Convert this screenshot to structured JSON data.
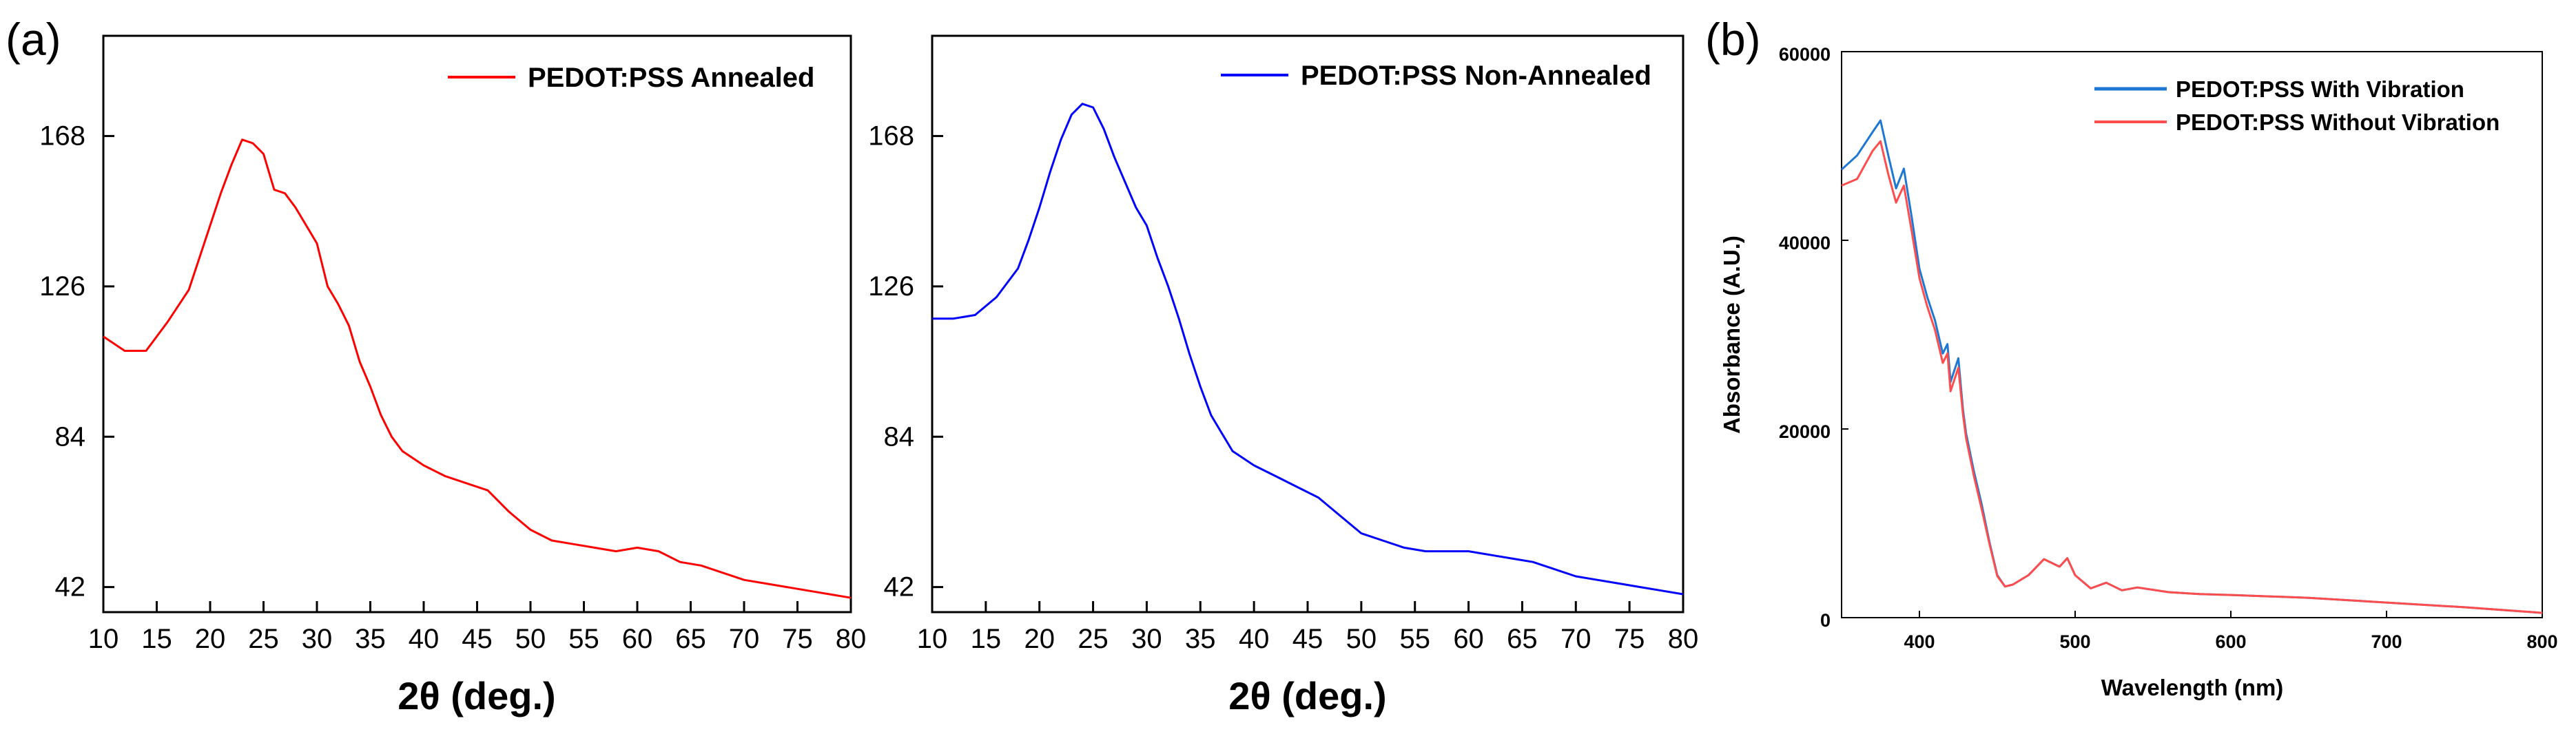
{
  "panel_labels": {
    "a": "(a)",
    "b": "(b)"
  },
  "chart_data": [
    {
      "id": "a1",
      "type": "line",
      "title": "",
      "xlabel": "2θ (deg.)",
      "ylabel": "",
      "xlim": [
        10,
        80
      ],
      "ylim": [
        35,
        196
      ],
      "xticks": [
        "10",
        "15",
        "20",
        "25",
        "30",
        "35",
        "40",
        "45",
        "50",
        "55",
        "60",
        "65",
        "70",
        "75",
        "80"
      ],
      "yticks": [
        "42",
        "84",
        "126",
        "168"
      ],
      "legend_position": "top-right",
      "series": [
        {
          "name": "PEDOT:PSS Annealed",
          "color": "#ff0000",
          "x": [
            10,
            12,
            14,
            16,
            18,
            19,
            20,
            21,
            22,
            23,
            24,
            25,
            26,
            27,
            28,
            29,
            30,
            31,
            32,
            33,
            34,
            35,
            36,
            37,
            38,
            40,
            42,
            44,
            46,
            48,
            50,
            52,
            54,
            56,
            58,
            60,
            62,
            64,
            66,
            68,
            70,
            72,
            74,
            76,
            78,
            80
          ],
          "y": [
            112,
            108,
            108,
            116,
            125,
            134,
            143,
            152,
            160,
            167,
            166,
            163,
            153,
            152,
            148,
            143,
            138,
            126,
            121,
            115,
            105,
            98,
            90,
            84,
            80,
            76,
            73,
            71,
            69,
            63,
            58,
            55,
            54,
            53,
            52,
            53,
            52,
            49,
            48,
            46,
            44,
            43,
            42,
            41,
            40,
            39
          ]
        }
      ]
    },
    {
      "id": "a2",
      "type": "line",
      "title": "",
      "xlabel": "2θ (deg.)",
      "ylabel": "",
      "xlim": [
        10,
        80
      ],
      "ylim": [
        35,
        196
      ],
      "xticks": [
        "10",
        "15",
        "20",
        "25",
        "30",
        "35",
        "40",
        "45",
        "50",
        "55",
        "60",
        "65",
        "70",
        "75",
        "80"
      ],
      "yticks": [
        "42",
        "84",
        "126",
        "168"
      ],
      "legend_position": "top-right",
      "series": [
        {
          "name": "PEDOT:PSS Non-Annealed",
          "color": "#0000ff",
          "x": [
            10,
            12,
            14,
            16,
            18,
            19,
            20,
            21,
            22,
            23,
            24,
            25,
            26,
            27,
            28,
            29,
            30,
            31,
            32,
            33,
            34,
            35,
            36,
            37,
            38,
            40,
            42,
            44,
            46,
            48,
            50,
            52,
            54,
            56,
            58,
            60,
            62,
            64,
            66,
            68,
            70,
            72,
            74,
            76,
            78,
            80
          ],
          "y": [
            117,
            117,
            118,
            123,
            131,
            139,
            148,
            158,
            167,
            174,
            177,
            176,
            170,
            162,
            155,
            148,
            143,
            134,
            126,
            117,
            107,
            98,
            90,
            85,
            80,
            76,
            73,
            70,
            67,
            62,
            57,
            55,
            53,
            52,
            52,
            52,
            51,
            50,
            49,
            47,
            45,
            44,
            43,
            42,
            41,
            40
          ]
        }
      ]
    },
    {
      "id": "b",
      "type": "line",
      "title": "",
      "xlabel": "Wavelength (nm)",
      "ylabel": "Absorbance (A.U.)",
      "xlim": [
        350,
        800
      ],
      "ylim": [
        0,
        60000
      ],
      "xticks": [
        "400",
        "500",
        "600",
        "700",
        "800"
      ],
      "yticks": [
        "0",
        "20000",
        "40000",
        "60000"
      ],
      "legend_position": "top-right",
      "series": [
        {
          "name": "PEDOT:PSS With Vibration",
          "color": "#1f77d4",
          "x": [
            350,
            360,
            370,
            375,
            380,
            385,
            390,
            395,
            400,
            405,
            410,
            415,
            418,
            420,
            425,
            428,
            430,
            435,
            440,
            445,
            450,
            455,
            460,
            470,
            480,
            490,
            495,
            500,
            510,
            520,
            530,
            540,
            560,
            580,
            600,
            650,
            700,
            750,
            800
          ],
          "y": [
            47500,
            49000,
            51500,
            52700,
            49000,
            45500,
            47600,
            42500,
            37000,
            34000,
            31500,
            28000,
            29000,
            25000,
            27500,
            22000,
            19500,
            15500,
            12000,
            8000,
            4500,
            3300,
            3500,
            4500,
            6200,
            5400,
            6300,
            4500,
            3100,
            3700,
            2900,
            3200,
            2700,
            2500,
            2400,
            2100,
            1600,
            1100,
            500
          ]
        },
        {
          "name": "PEDOT:PSS Without Vibration",
          "color": "#ff4d4d",
          "x": [
            350,
            360,
            370,
            375,
            380,
            385,
            390,
            395,
            400,
            405,
            410,
            415,
            418,
            420,
            425,
            428,
            430,
            435,
            440,
            445,
            450,
            455,
            460,
            470,
            480,
            490,
            495,
            500,
            510,
            520,
            530,
            540,
            560,
            580,
            600,
            650,
            700,
            750,
            800
          ],
          "y": [
            45800,
            46500,
            49500,
            50500,
            47000,
            44000,
            45800,
            41000,
            36000,
            33000,
            30500,
            27000,
            28000,
            24000,
            26500,
            21500,
            19000,
            15000,
            11500,
            7800,
            4400,
            3300,
            3500,
            4500,
            6200,
            5400,
            6300,
            4500,
            3100,
            3700,
            2900,
            3200,
            2700,
            2500,
            2400,
            2100,
            1600,
            1100,
            500
          ]
        }
      ]
    }
  ]
}
